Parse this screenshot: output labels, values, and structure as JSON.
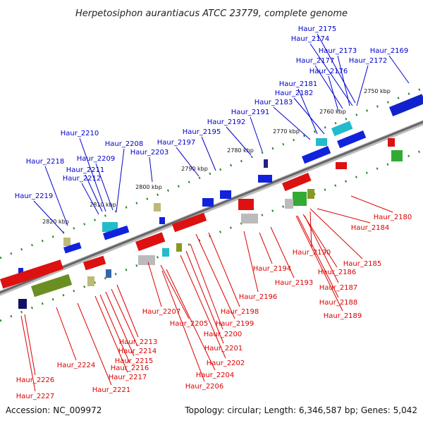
{
  "title": "Herpetosiphon aurantiacus ATCC 23779, complete genome",
  "footer": {
    "accession": "Accession: NC_009972",
    "summary": "Topology: circular; Length: 6,346,587 bp; Genes: 5,042"
  },
  "colors": {
    "top_strand": "#0000cc",
    "bottom_strand": "#dd0000",
    "backbone": "#888888",
    "ticks": "#2a8a2a"
  },
  "scale_ticks": [
    "2750 kbp",
    "2760 kbp",
    "2770 kbp",
    "2780 kbp",
    "2790 kbp",
    "2800 kbp",
    "2810 kbp",
    "2820 kbp"
  ],
  "top_genes": [
    "Haur_2175",
    "Haur_2174",
    "Haur_2173",
    "Haur_2169",
    "Haur_2177",
    "Haur_2172",
    "Haur_2176",
    "Haur_2181",
    "Haur_2182",
    "Haur_2183",
    "Haur_2191",
    "Haur_2192",
    "Haur_2195",
    "Haur_2197",
    "Haur_2210",
    "Haur_2208",
    "Haur_2203",
    "Haur_2209",
    "Haur_2218",
    "Haur_2211",
    "Haur_2212",
    "Haur_2219"
  ],
  "bottom_genes": [
    "Haur_2180",
    "Haur_2184",
    "Haur_2190",
    "Haur_2185",
    "Haur_2194",
    "Haur_2186",
    "Haur_2193",
    "Haur_2187",
    "Haur_2196",
    "Haur_2188",
    "Haur_2189",
    "Haur_2207",
    "Haur_2198",
    "Haur_2199",
    "Haur_2205",
    "Haur_2200",
    "Haur_2213",
    "Haur_2201",
    "Haur_2214",
    "Haur_2215",
    "Haur_2202",
    "Haur_2224",
    "Haur_2216",
    "Haur_2204",
    "Haur_2217",
    "Haur_2226",
    "Haur_2206",
    "Haur_2221",
    "Haur_2227"
  ]
}
